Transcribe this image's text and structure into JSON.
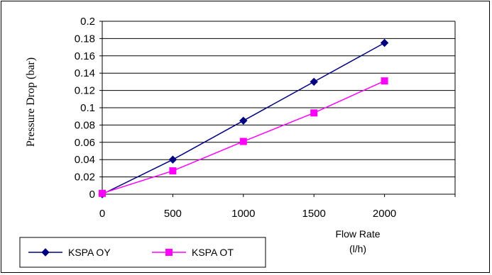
{
  "chart_data": {
    "type": "line",
    "title": "",
    "xlabel": "Flow Rate (l/h)",
    "ylabel": "Pressure Drop (bar)",
    "xlim": [
      0,
      2500
    ],
    "ylim": [
      0,
      0.2
    ],
    "x_ticks": [
      0,
      500,
      1000,
      1500,
      2000
    ],
    "x_tick_labels": [
      "0",
      "500",
      "1000",
      "1500",
      "2000"
    ],
    "y_ticks": [
      0,
      0.02,
      0.04,
      0.06,
      0.08,
      0.1,
      0.12,
      0.14,
      0.16,
      0.18,
      0.2
    ],
    "y_tick_labels": [
      "0",
      "0.02",
      "0.04",
      "0.06",
      "0.08",
      "0.1",
      "0.12",
      "0.14",
      "0.16",
      "0.18",
      "0.2"
    ],
    "grid": "horizontal",
    "legend_position": "bottom-left",
    "series": [
      {
        "name": "KSPA OY",
        "color": "#000080",
        "marker": "diamond",
        "x": [
          0,
          500,
          1000,
          1500,
          2000
        ],
        "y": [
          0,
          0.04,
          0.085,
          0.13,
          0.175
        ]
      },
      {
        "name": "KSPA OT",
        "color": "#ff00ff",
        "marker": "square",
        "x": [
          0,
          500,
          1000,
          1500,
          2000
        ],
        "y": [
          0.001,
          0.027,
          0.061,
          0.094,
          0.131
        ]
      }
    ]
  }
}
